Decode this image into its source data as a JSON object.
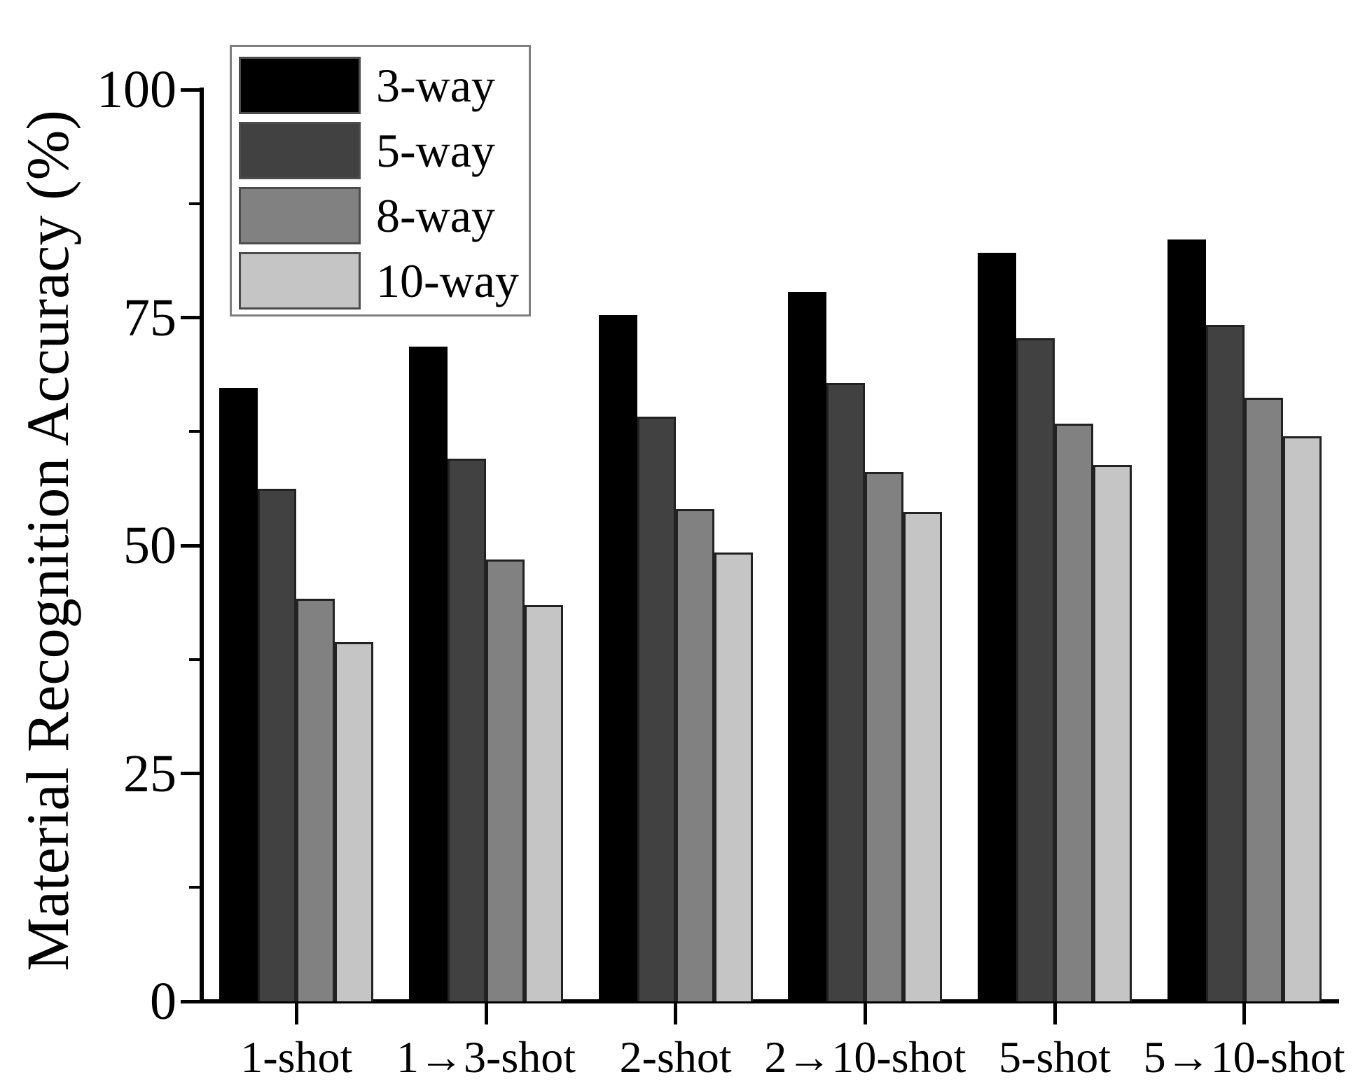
{
  "chart_data": {
    "type": "bar",
    "title": "",
    "xlabel": "",
    "ylabel": "Material Recognition Accuracy (%)",
    "ylim": [
      0,
      100
    ],
    "yticks": [
      0,
      25,
      50,
      75,
      100
    ],
    "yticks_minor": [
      12.5,
      37.5,
      62.5,
      87.5
    ],
    "grid": "off",
    "legend_position": "upper-left-inside",
    "categories": [
      "1-shot",
      "1→3-shot",
      "2-shot",
      "2→10-shot",
      "5-shot",
      "5→10-shot"
    ],
    "series": [
      {
        "name": "3-way",
        "color": "#000000",
        "values": [
          67.3,
          71.8,
          75.3,
          77.8,
          82.1,
          83.6
        ]
      },
      {
        "name": "5-way",
        "color": "#414141",
        "values": [
          56.2,
          59.5,
          64.1,
          67.8,
          72.7,
          74.2
        ]
      },
      {
        "name": "8-way",
        "color": "#818181",
        "values": [
          44.2,
          48.5,
          54.0,
          58.1,
          63.4,
          66.2
        ]
      },
      {
        "name": "10-way",
        "color": "#c5c5c5",
        "values": [
          39.4,
          43.5,
          49.2,
          53.7,
          58.8,
          62.0
        ]
      }
    ]
  },
  "colors": {
    "background": "#ffffff",
    "axis": "#000000",
    "bar_border": "#222222",
    "legend_border": "#7f7f7f",
    "swatch_border": "#4c4c4c"
  }
}
